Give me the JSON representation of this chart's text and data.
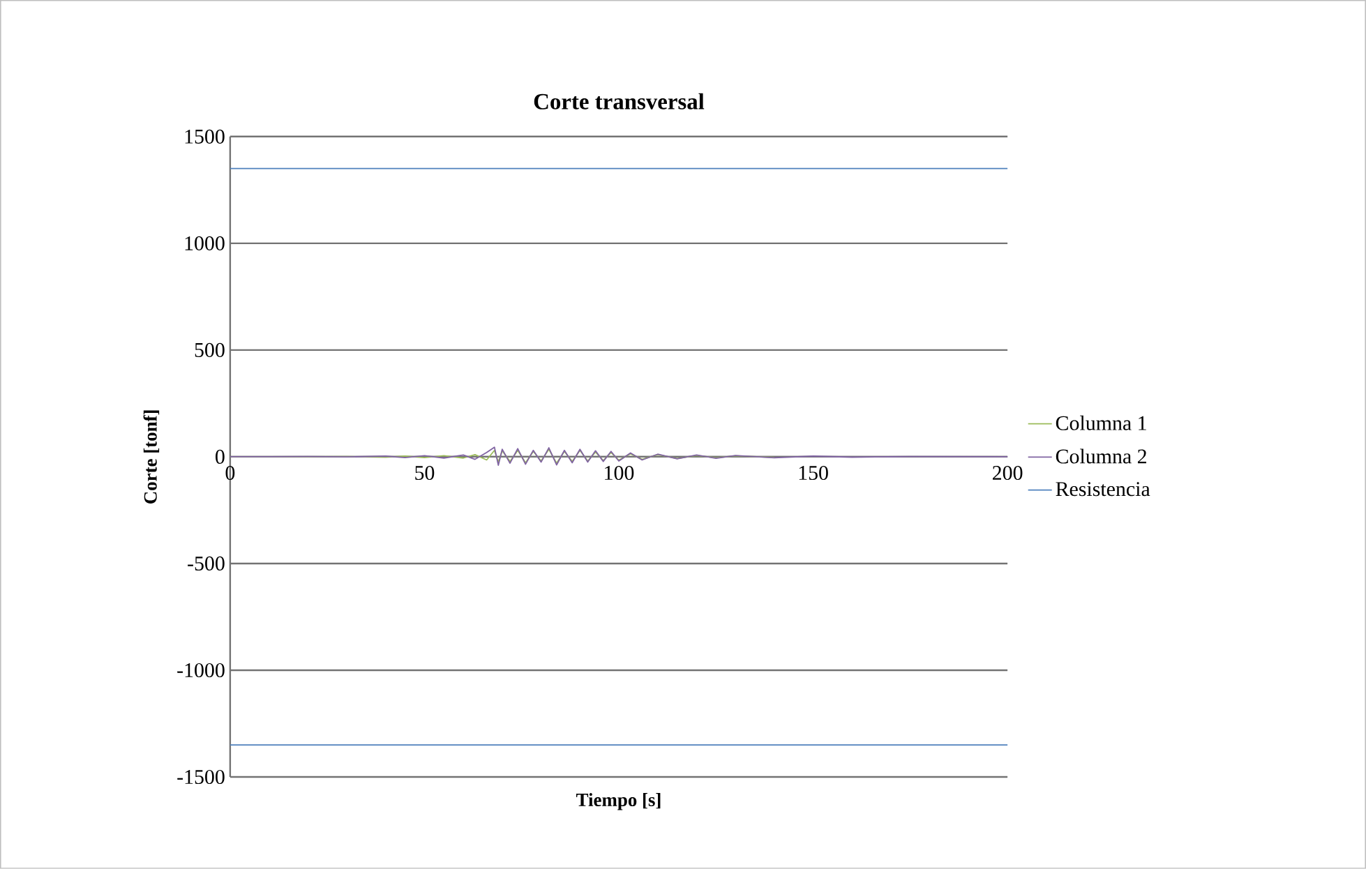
{
  "chart_data": {
    "type": "line",
    "title": "Corte transversal",
    "xlabel": "Tiempo [s]",
    "ylabel": "Corte [tonf]",
    "xlim": [
      0,
      200
    ],
    "xticks": [
      0,
      50,
      100,
      150,
      200
    ],
    "ylim": [
      -1500,
      1500
    ],
    "yticks": [
      -1500,
      -1000,
      -500,
      0,
      500,
      1000,
      1500
    ],
    "grid": "y",
    "legend": "right",
    "line_style": "solid",
    "marker": "none",
    "series": [
      {
        "name": "Columna 1",
        "color": "#9bbb59",
        "x": [
          0,
          10,
          20,
          30,
          40,
          45,
          50,
          55,
          60,
          63,
          66,
          68,
          69,
          70,
          72,
          74,
          76,
          78,
          80,
          82,
          84,
          86,
          88,
          90,
          92,
          94,
          96,
          98,
          100,
          103,
          106,
          110,
          115,
          120,
          125,
          130,
          140
        ],
        "values": [
          0,
          0,
          0,
          1,
          -2,
          3,
          -4,
          5,
          -6,
          10,
          -15,
          30,
          -25,
          28,
          -22,
          30,
          -28,
          25,
          -20,
          35,
          -30,
          25,
          -22,
          30,
          -20,
          22,
          -18,
          20,
          -16,
          14,
          -12,
          10,
          -8,
          6,
          -5,
          4,
          -3
        ]
      },
      {
        "name": "Columna 2",
        "color": "#8064a2",
        "x": [
          0,
          10,
          20,
          30,
          40,
          45,
          50,
          55,
          60,
          63,
          66,
          68,
          69,
          70,
          72,
          74,
          76,
          78,
          80,
          82,
          84,
          86,
          88,
          90,
          92,
          94,
          96,
          98,
          100,
          103,
          106,
          110,
          115,
          120,
          125,
          130,
          140,
          150,
          160,
          175,
          200
        ],
        "values": [
          0,
          0,
          1,
          -1,
          3,
          -4,
          5,
          -6,
          8,
          -12,
          20,
          45,
          -40,
          35,
          -30,
          38,
          -35,
          30,
          -25,
          42,
          -38,
          30,
          -28,
          35,
          -25,
          28,
          -22,
          25,
          -20,
          18,
          -15,
          12,
          -10,
          8,
          -7,
          6,
          -5,
          3,
          -2,
          1,
          0
        ]
      },
      {
        "name": "Resistencia",
        "color": "#4f81bd",
        "x": [
          0,
          200
        ],
        "values": [
          1350,
          1350
        ]
      },
      {
        "color": "#4f81bd",
        "x": [
          0,
          200
        ],
        "values": [
          -1350,
          -1350
        ]
      }
    ]
  }
}
